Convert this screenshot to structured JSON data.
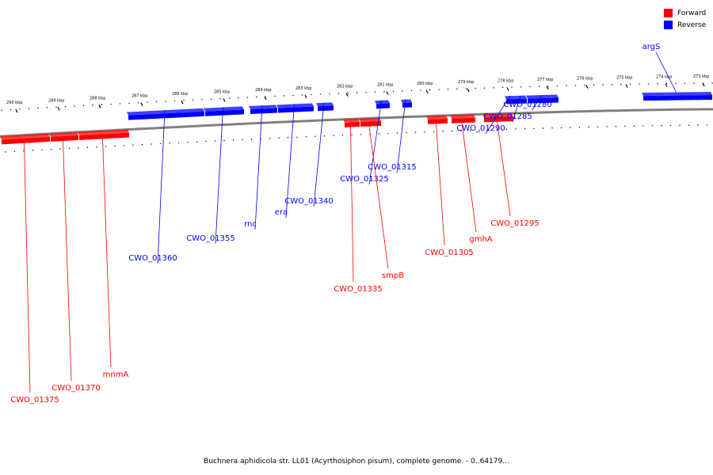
{
  "legend": [
    {
      "label": "Forward",
      "color": "#ff0000"
    },
    {
      "label": "Reverse",
      "color": "#0000ff"
    }
  ],
  "caption": "Buchnera aphidicola str. LL01 (Acyrthosiphon pisum), complete genome. - 0..64179...",
  "colors": {
    "forward": "#ff0000",
    "reverse": "#0000ff",
    "backbone": "#808080"
  },
  "ticks": [
    "273 kbp",
    "274 kbp",
    "275 kbp",
    "276 kbp",
    "277 kbp",
    "278 kbp",
    "279 kbp",
    "280 kbp",
    "281 kbp",
    "282 kbp",
    "283 kbp",
    "284 kbp",
    "285 kbp",
    "286 kbp",
    "287 kbp",
    "288 kbp",
    "289 kbp",
    "290 kbp"
  ],
  "genes": [
    {
      "name": "argS",
      "strand": "reverse"
    },
    {
      "name": "CWO_01280",
      "strand": "reverse"
    },
    {
      "name": "CWO_01285",
      "strand": "reverse"
    },
    {
      "name": "CWO_01290",
      "strand": "reverse"
    },
    {
      "name": "CWO_01315",
      "strand": "reverse"
    },
    {
      "name": "CWO_01325",
      "strand": "reverse"
    },
    {
      "name": "CWO_01340",
      "strand": "reverse"
    },
    {
      "name": "era",
      "strand": "reverse"
    },
    {
      "name": "rnc",
      "strand": "reverse"
    },
    {
      "name": "CWO_01355",
      "strand": "reverse"
    },
    {
      "name": "CWO_01360",
      "strand": "reverse"
    },
    {
      "name": "CWO_01295",
      "strand": "forward"
    },
    {
      "name": "gmhA",
      "strand": "forward"
    },
    {
      "name": "CWO_01305",
      "strand": "forward"
    },
    {
      "name": "smpB",
      "strand": "forward"
    },
    {
      "name": "CWO_01335",
      "strand": "forward"
    },
    {
      "name": "mnmA",
      "strand": "forward"
    },
    {
      "name": "CWO_01370",
      "strand": "forward"
    },
    {
      "name": "CWO_01375",
      "strand": "forward"
    }
  ]
}
